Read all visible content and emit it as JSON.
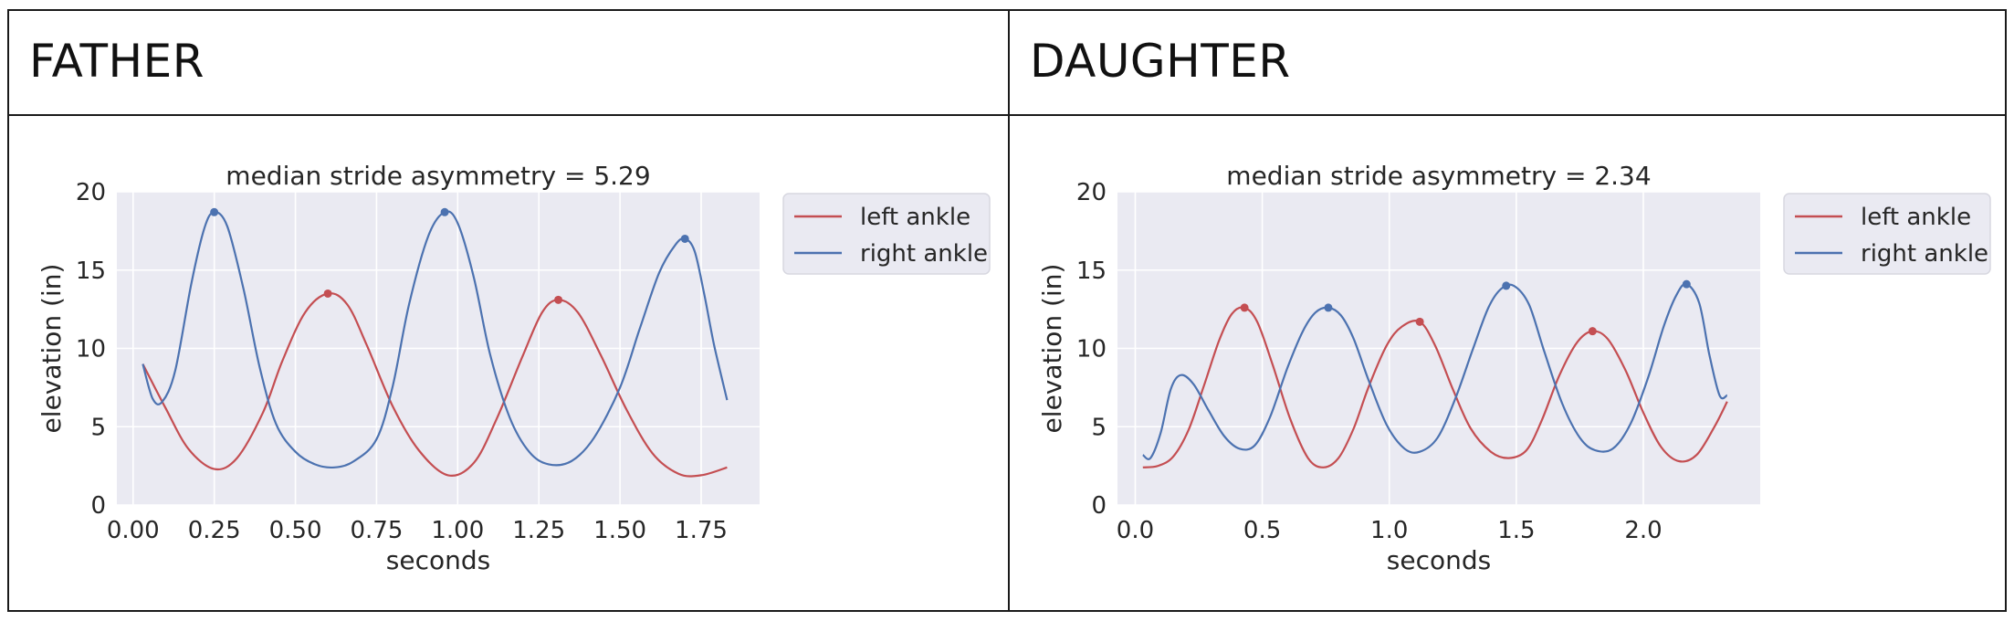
{
  "panels": [
    {
      "label": "FATHER"
    },
    {
      "label": "DAUGHTER"
    }
  ],
  "colors": {
    "left": "#c44e52",
    "right": "#4c72b0",
    "plot_bg": "#eaeaf2",
    "grid": "#ffffff"
  },
  "chart_data": [
    {
      "type": "line",
      "title": "median stride asymmetry = 5.29",
      "xlabel": "seconds",
      "ylabel": "elevation (in)",
      "xlim": [
        -0.05,
        1.93
      ],
      "ylim": [
        0,
        20
      ],
      "xticks": [
        0.0,
        0.25,
        0.5,
        0.75,
        1.0,
        1.25,
        1.5,
        1.75
      ],
      "xtick_labels": [
        "0.00",
        "0.25",
        "0.50",
        "0.75",
        "1.00",
        "1.25",
        "1.50",
        "1.75"
      ],
      "yticks": [
        0,
        5,
        10,
        15,
        20
      ],
      "ytick_labels": [
        "0",
        "5",
        "10",
        "15",
        "20"
      ],
      "grid": true,
      "legend": "outside-right-top",
      "series": [
        {
          "name": "left ankle",
          "key": "left",
          "x": [
            0.03,
            0.1,
            0.17,
            0.25,
            0.32,
            0.4,
            0.46,
            0.53,
            0.6,
            0.66,
            0.72,
            0.8,
            0.88,
            0.97,
            1.05,
            1.12,
            1.2,
            1.26,
            1.31,
            1.37,
            1.44,
            1.52,
            1.6,
            1.68,
            1.75,
            1.83
          ],
          "y": [
            9.0,
            6.2,
            3.6,
            2.3,
            3.0,
            5.9,
            9.2,
            12.3,
            13.5,
            12.8,
            10.2,
            6.3,
            3.5,
            1.9,
            2.7,
            5.5,
            9.5,
            12.3,
            13.1,
            12.3,
            9.6,
            6.1,
            3.3,
            2.0,
            1.9,
            2.4
          ],
          "peaks": [
            [
              0.6,
              13.5
            ],
            [
              1.31,
              13.1
            ]
          ]
        },
        {
          "name": "right ankle",
          "key": "right",
          "x": [
            0.03,
            0.06,
            0.09,
            0.13,
            0.18,
            0.22,
            0.25,
            0.29,
            0.34,
            0.39,
            0.44,
            0.5,
            0.56,
            0.62,
            0.68,
            0.75,
            0.8,
            0.85,
            0.91,
            0.96,
            1.0,
            1.05,
            1.1,
            1.16,
            1.22,
            1.28,
            1.35,
            1.42,
            1.5,
            1.56,
            1.62,
            1.67,
            1.7,
            1.73,
            1.76,
            1.79,
            1.83
          ],
          "y": [
            9.0,
            6.8,
            6.6,
            8.6,
            14.2,
            17.7,
            18.7,
            17.8,
            13.8,
            8.8,
            5.2,
            3.4,
            2.6,
            2.4,
            2.8,
            4.2,
            7.6,
            12.8,
            17.2,
            18.7,
            18.0,
            14.5,
            9.6,
            5.6,
            3.4,
            2.6,
            2.8,
            4.3,
            7.5,
            11.2,
            14.8,
            16.6,
            17.0,
            16.2,
            13.4,
            10.2,
            6.7
          ],
          "peaks": [
            [
              0.25,
              18.7
            ],
            [
              0.96,
              18.7
            ],
            [
              1.7,
              17.0
            ]
          ]
        }
      ]
    },
    {
      "type": "line",
      "title": "median stride asymmetry = 2.34",
      "xlabel": "seconds",
      "ylabel": "elevation (in)",
      "xlim": [
        -0.07,
        2.46
      ],
      "ylim": [
        0,
        20
      ],
      "xticks": [
        0.0,
        0.5,
        1.0,
        1.5,
        2.0
      ],
      "xtick_labels": [
        "0.0",
        "0.5",
        "1.0",
        "1.5",
        "2.0"
      ],
      "yticks": [
        0,
        5,
        10,
        15,
        20
      ],
      "ytick_labels": [
        "0",
        "5",
        "10",
        "15",
        "20"
      ],
      "grid": true,
      "legend": "outside-right-top",
      "series": [
        {
          "name": "left ankle",
          "key": "left",
          "x": [
            0.03,
            0.09,
            0.15,
            0.21,
            0.27,
            0.33,
            0.38,
            0.43,
            0.48,
            0.54,
            0.61,
            0.68,
            0.74,
            0.8,
            0.86,
            0.92,
            0.99,
            1.05,
            1.12,
            1.18,
            1.25,
            1.32,
            1.4,
            1.47,
            1.54,
            1.6,
            1.67,
            1.74,
            1.8,
            1.86,
            1.93,
            2.0,
            2.07,
            2.14,
            2.21,
            2.28,
            2.33
          ],
          "y": [
            2.4,
            2.5,
            3.1,
            4.8,
            7.6,
            10.5,
            12.2,
            12.6,
            11.7,
            9.0,
            5.5,
            3.0,
            2.4,
            3.0,
            4.9,
            7.6,
            10.2,
            11.4,
            11.7,
            10.2,
            7.4,
            4.9,
            3.4,
            3.0,
            3.5,
            5.4,
            8.3,
            10.4,
            11.1,
            10.6,
            8.6,
            5.9,
            3.7,
            2.8,
            3.2,
            5.0,
            6.6
          ],
          "peaks": [
            [
              0.43,
              12.6
            ],
            [
              1.12,
              11.7
            ],
            [
              1.8,
              11.1
            ]
          ]
        },
        {
          "name": "right ankle",
          "key": "right",
          "x": [
            0.03,
            0.06,
            0.1,
            0.14,
            0.18,
            0.23,
            0.29,
            0.35,
            0.41,
            0.47,
            0.53,
            0.6,
            0.66,
            0.71,
            0.76,
            0.81,
            0.86,
            0.92,
            0.99,
            1.06,
            1.12,
            1.19,
            1.26,
            1.33,
            1.39,
            1.44,
            1.49,
            1.55,
            1.61,
            1.68,
            1.75,
            1.81,
            1.88,
            1.95,
            2.02,
            2.08,
            2.13,
            2.17,
            2.22,
            2.26,
            2.3,
            2.33
          ],
          "y": [
            3.2,
            3.0,
            4.6,
            7.4,
            8.3,
            7.7,
            6.0,
            4.4,
            3.6,
            3.8,
            5.6,
            8.8,
            11.1,
            12.3,
            12.6,
            12.1,
            10.6,
            7.9,
            5.1,
            3.6,
            3.4,
            4.3,
            6.8,
            10.0,
            12.6,
            13.8,
            14.0,
            12.8,
            9.8,
            6.5,
            4.3,
            3.5,
            3.6,
            5.2,
            8.2,
            11.4,
            13.4,
            14.1,
            12.9,
            9.6,
            7.0,
            7.0
          ],
          "peaks": [
            [
              0.76,
              12.6
            ],
            [
              1.46,
              14.0
            ],
            [
              2.17,
              14.1
            ]
          ]
        }
      ]
    }
  ]
}
